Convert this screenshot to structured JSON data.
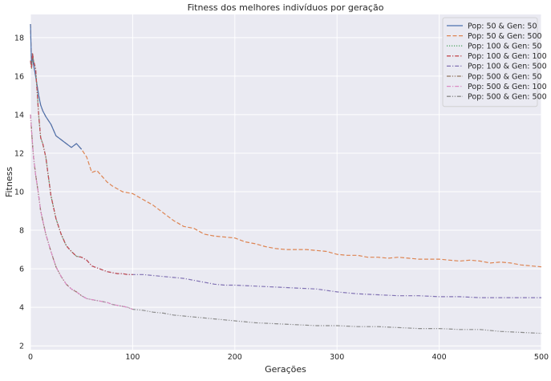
{
  "chart_data": {
    "type": "line",
    "title": "Fitness dos melhores indivíduos por geração",
    "xlabel": "Gerações",
    "ylabel": "Fitness",
    "xlim": [
      0,
      500
    ],
    "ylim": [
      1.8,
      19.2
    ],
    "xticks": [
      0,
      100,
      200,
      300,
      400,
      500
    ],
    "yticks": [
      2,
      4,
      6,
      8,
      10,
      12,
      14,
      16,
      18
    ],
    "grid": true,
    "legend_position": "top-right",
    "series": [
      {
        "name": "Pop: 50 & Gen: 50",
        "color": "#4c72b0",
        "dash": "solid",
        "x": [
          0,
          1,
          2,
          3,
          5,
          8,
          10,
          12,
          15,
          20,
          25,
          30,
          35,
          40,
          45,
          50
        ],
        "y": [
          18.7,
          16.5,
          17.1,
          16.6,
          16.0,
          15.0,
          14.5,
          14.2,
          13.9,
          13.5,
          12.9,
          12.7,
          12.5,
          12.3,
          12.5,
          12.2
        ]
      },
      {
        "name": "Pop: 50 & Gen: 500",
        "color": "#dd8452",
        "dash": "dashed",
        "x": [
          0,
          1,
          2,
          3,
          5,
          8,
          10,
          12,
          15,
          20,
          25,
          30,
          35,
          40,
          45,
          50,
          55,
          60,
          65,
          70,
          75,
          80,
          90,
          100,
          110,
          120,
          130,
          140,
          150,
          160,
          170,
          180,
          190,
          200,
          210,
          220,
          230,
          240,
          250,
          260,
          270,
          280,
          290,
          300,
          310,
          320,
          330,
          340,
          350,
          360,
          370,
          380,
          390,
          400,
          410,
          420,
          430,
          440,
          450,
          460,
          470,
          480,
          490,
          500
        ],
        "y": [
          18.7,
          16.5,
          17.1,
          16.6,
          16.0,
          15.0,
          14.5,
          14.2,
          13.9,
          13.5,
          12.9,
          12.7,
          12.5,
          12.3,
          12.5,
          12.2,
          11.8,
          11.0,
          11.1,
          10.8,
          10.5,
          10.3,
          10.0,
          9.9,
          9.6,
          9.3,
          8.9,
          8.5,
          8.2,
          8.1,
          7.8,
          7.7,
          7.65,
          7.6,
          7.4,
          7.3,
          7.15,
          7.05,
          7.0,
          7.0,
          7.0,
          6.95,
          6.9,
          6.75,
          6.7,
          6.7,
          6.6,
          6.6,
          6.55,
          6.6,
          6.55,
          6.5,
          6.5,
          6.5,
          6.45,
          6.4,
          6.45,
          6.4,
          6.3,
          6.35,
          6.3,
          6.2,
          6.15,
          6.1
        ]
      },
      {
        "name": "Pop: 100 & Gen: 50",
        "color": "#55a868",
        "dash": "dotted",
        "x": [
          0,
          1,
          2,
          3,
          5,
          8,
          10,
          12,
          15,
          20,
          25,
          30,
          35,
          40,
          45,
          50
        ],
        "y": [
          16.8,
          16.4,
          17.2,
          16.8,
          16.4,
          14.0,
          12.8,
          12.5,
          11.8,
          9.8,
          8.6,
          7.8,
          7.2,
          6.9,
          6.65,
          6.6
        ]
      },
      {
        "name": "Pop: 100 & Gen: 100",
        "color": "#c44e52",
        "dash": "dashdot",
        "x": [
          0,
          1,
          2,
          3,
          5,
          8,
          10,
          12,
          15,
          20,
          25,
          30,
          35,
          40,
          45,
          50,
          55,
          60,
          65,
          70,
          75,
          80,
          85,
          90,
          95,
          100
        ],
        "y": [
          16.8,
          16.4,
          17.2,
          16.8,
          16.4,
          14.0,
          12.8,
          12.5,
          11.8,
          9.8,
          8.6,
          7.8,
          7.2,
          6.9,
          6.65,
          6.6,
          6.45,
          6.15,
          6.05,
          5.95,
          5.85,
          5.8,
          5.75,
          5.75,
          5.7,
          5.7
        ]
      },
      {
        "name": "Pop: 100 & Gen: 500",
        "color": "#8172b3",
        "dash": "dashdot",
        "x": [
          0,
          1,
          2,
          3,
          5,
          8,
          10,
          12,
          15,
          20,
          25,
          30,
          35,
          40,
          45,
          50,
          55,
          60,
          65,
          70,
          75,
          80,
          85,
          90,
          95,
          100,
          110,
          120,
          130,
          140,
          150,
          160,
          170,
          180,
          190,
          200,
          220,
          240,
          260,
          280,
          300,
          320,
          340,
          360,
          380,
          400,
          420,
          440,
          460,
          480,
          500
        ],
        "y": [
          16.8,
          16.4,
          17.2,
          16.8,
          16.4,
          14.0,
          12.8,
          12.5,
          11.8,
          9.8,
          8.6,
          7.8,
          7.2,
          6.9,
          6.65,
          6.6,
          6.45,
          6.15,
          6.05,
          5.95,
          5.85,
          5.8,
          5.75,
          5.75,
          5.7,
          5.7,
          5.7,
          5.65,
          5.6,
          5.55,
          5.5,
          5.4,
          5.3,
          5.2,
          5.15,
          5.15,
          5.1,
          5.05,
          5.0,
          4.95,
          4.8,
          4.7,
          4.65,
          4.6,
          4.6,
          4.55,
          4.55,
          4.5,
          4.5,
          4.5,
          4.5
        ]
      },
      {
        "name": "Pop: 500 & Gen: 50",
        "color": "#937860",
        "dash": "dashdotdot",
        "x": [
          0,
          1,
          2,
          3,
          5,
          8,
          10,
          12,
          15,
          20,
          25,
          30,
          35,
          40,
          45,
          50
        ],
        "y": [
          14.0,
          13.2,
          12.5,
          11.8,
          10.9,
          9.8,
          9.0,
          8.5,
          7.8,
          6.9,
          6.1,
          5.6,
          5.2,
          4.95,
          4.8,
          4.6
        ]
      },
      {
        "name": "Pop: 500 & Gen: 100",
        "color": "#da8bc3",
        "dash": "dashdot",
        "x": [
          0,
          1,
          2,
          3,
          5,
          8,
          10,
          12,
          15,
          20,
          25,
          30,
          35,
          40,
          45,
          50,
          55,
          60,
          65,
          70,
          75,
          80,
          85,
          90,
          95,
          100
        ],
        "y": [
          14.0,
          13.2,
          12.5,
          11.8,
          10.9,
          9.8,
          9.0,
          8.5,
          7.8,
          6.9,
          6.1,
          5.6,
          5.2,
          4.95,
          4.8,
          4.6,
          4.45,
          4.4,
          4.35,
          4.3,
          4.25,
          4.15,
          4.1,
          4.05,
          4.0,
          3.9
        ]
      },
      {
        "name": "Pop: 500 & Gen: 500",
        "color": "#8c8c8c",
        "dash": "dashdotdot",
        "x": [
          0,
          1,
          2,
          3,
          5,
          8,
          10,
          12,
          15,
          20,
          25,
          30,
          35,
          40,
          45,
          50,
          55,
          60,
          65,
          70,
          75,
          80,
          85,
          90,
          95,
          100,
          110,
          120,
          130,
          140,
          150,
          160,
          170,
          180,
          190,
          200,
          220,
          240,
          260,
          280,
          300,
          320,
          340,
          360,
          380,
          400,
          420,
          440,
          460,
          480,
          500
        ],
        "y": [
          14.0,
          13.2,
          12.5,
          11.8,
          10.9,
          9.8,
          9.0,
          8.5,
          7.8,
          6.9,
          6.1,
          5.6,
          5.2,
          4.95,
          4.8,
          4.6,
          4.45,
          4.4,
          4.35,
          4.3,
          4.25,
          4.15,
          4.1,
          4.05,
          4.0,
          3.9,
          3.85,
          3.75,
          3.7,
          3.6,
          3.55,
          3.5,
          3.45,
          3.4,
          3.35,
          3.3,
          3.2,
          3.15,
          3.1,
          3.05,
          3.05,
          3.0,
          3.0,
          2.95,
          2.9,
          2.9,
          2.85,
          2.85,
          2.75,
          2.7,
          2.65
        ]
      }
    ]
  }
}
